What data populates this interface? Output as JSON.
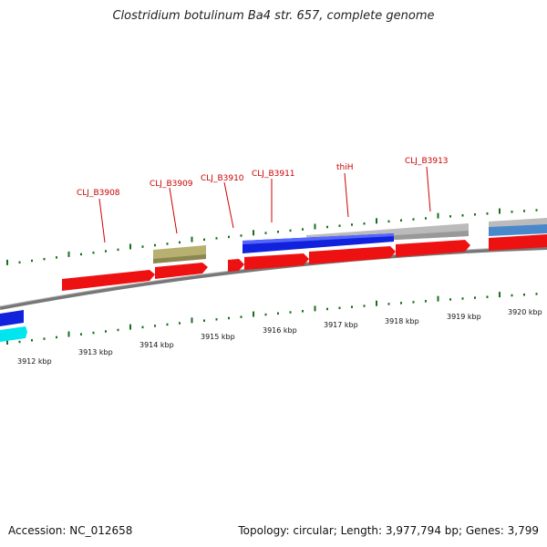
{
  "header": {
    "title": "Clostridium botulinum Ba4 str. 657, complete genome"
  },
  "footer": {
    "accession": "Accession: NC_012658",
    "summary": "Topology: circular; Length: 3,977,794 bp; Genes: 3,799"
  },
  "genes": [
    {
      "label": "CLJ_B3908"
    },
    {
      "label": "CLJ_B3909"
    },
    {
      "label": "CLJ_B3910"
    },
    {
      "label": "CLJ_B3911"
    },
    {
      "label": "thiH"
    },
    {
      "label": "CLJ_B3913"
    }
  ],
  "scale": {
    "ticks": [
      {
        "label": "3912 kbp"
      },
      {
        "label": "3913 kbp"
      },
      {
        "label": "3914 kbp"
      },
      {
        "label": "3915 kbp"
      },
      {
        "label": "3916 kbp"
      },
      {
        "label": "3917 kbp"
      },
      {
        "label": "3918 kbp"
      },
      {
        "label": "3919 kbp"
      },
      {
        "label": "3920 kbp"
      }
    ]
  },
  "colors": {
    "gene_label": "#cc0000",
    "cds_red": "#ee1111",
    "cds_blue": "#1122dd",
    "cds_grey": "#bbbbbb",
    "cds_olive": "#b8b070",
    "cds_cyan": "#00e5ee",
    "tick_green": "#1a6e1a",
    "backbone": "#777777"
  }
}
